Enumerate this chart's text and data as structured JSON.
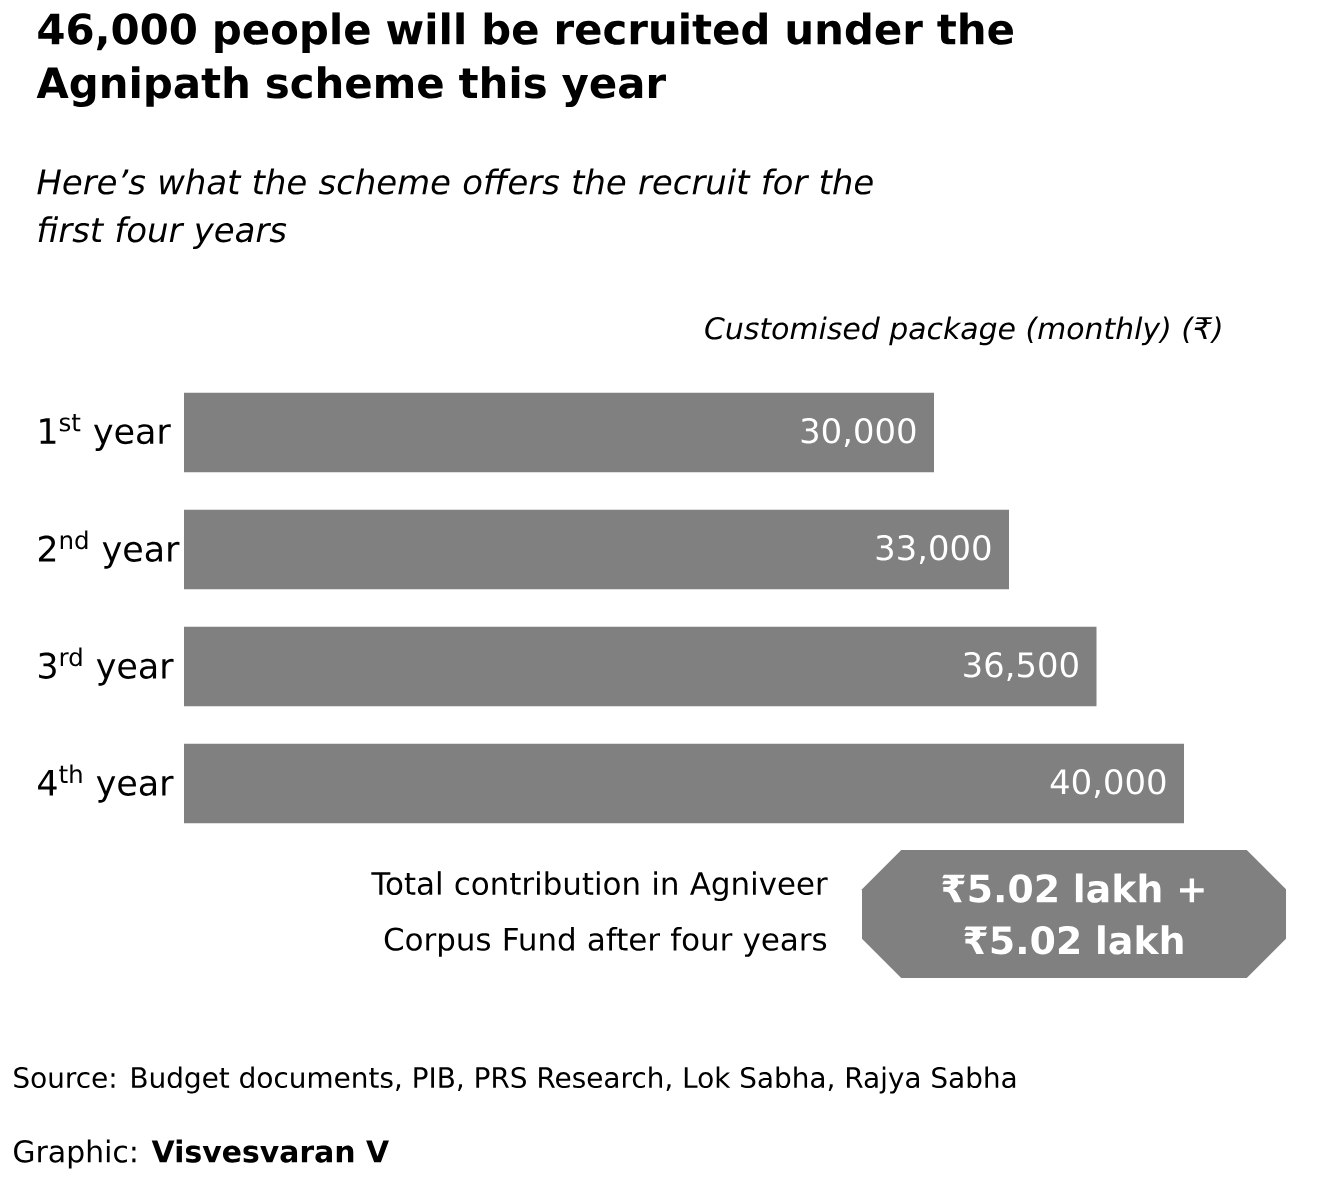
{
  "chart_data": {
    "type": "bar",
    "orientation": "horizontal",
    "title": "46,000 people will be recruited under the Agnipath scheme this year",
    "subtitle": "Here’s what the scheme offers the recruit for the first four years",
    "xlabel": "Customised package (monthly) (₹)",
    "categories": [
      "1$^{st}$ year",
      "2$^{nd}$ year",
      "3$^{rd}$ year",
      "4$^{th}$ year"
    ],
    "values": [
      30000,
      33000,
      36500,
      40000
    ],
    "value_labels": [
      "30,000",
      "33,000",
      "36,500",
      "40,000"
    ],
    "color": "#808080",
    "annotations": [
      "Total contribution in Agniveer Corpus Fund after four years",
      "₹5.02 lakh + ₹5.02 lakh",
      "Source: Budget documents, PIB, PRS Research, Lok Sabha, Rajya Sabha",
      "Graphic: **Visvesvaran V**"
    ]
  }
}
